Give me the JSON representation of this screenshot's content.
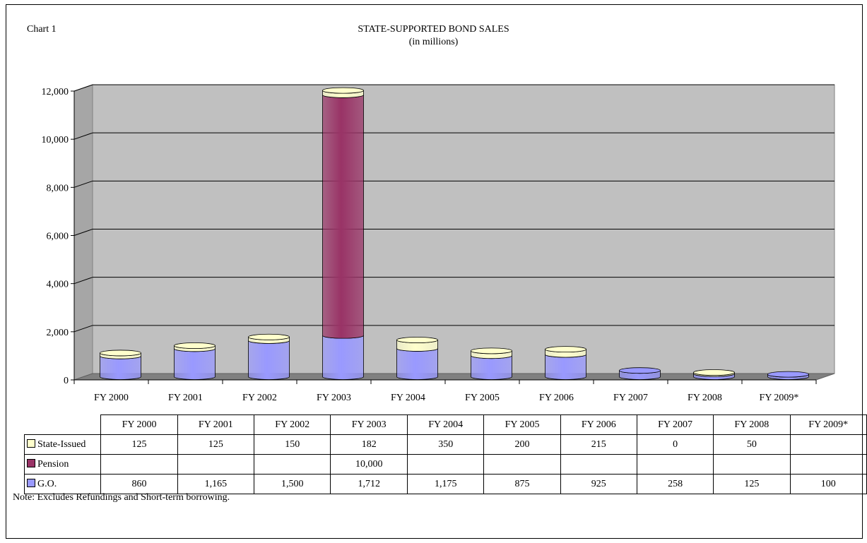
{
  "chart_label": "Chart 1",
  "note": "Note: Excludes Refundings and Short-term borrowing.",
  "chart_data": {
    "type": "bar",
    "stacked": true,
    "title": "STATE-SUPPORTED BOND SALES",
    "subtitle": "(in millions)",
    "categories": [
      "FY 2000",
      "FY 2001",
      "FY 2002",
      "FY 2003",
      "FY 2004",
      "FY 2005",
      "FY 2006",
      "FY 2007",
      "FY 2008",
      "FY 2009*"
    ],
    "series": [
      {
        "name": "G.O.",
        "color": "#9999ff",
        "values": [
          860,
          1165,
          1500,
          1712,
          1175,
          875,
          925,
          258,
          125,
          100
        ],
        "labels": [
          "860",
          "1,165",
          "1,500",
          "1,712",
          "1,175",
          "875",
          "925",
          "258",
          "125",
          "100"
        ]
      },
      {
        "name": "Pension",
        "color": "#993366",
        "values": [
          null,
          null,
          null,
          10000,
          null,
          null,
          null,
          null,
          null,
          null
        ],
        "labels": [
          "",
          "",
          "",
          "10,000",
          "",
          "",
          "",
          "",
          "",
          ""
        ]
      },
      {
        "name": "State-Issued",
        "color": "#ffffcc",
        "values": [
          125,
          125,
          150,
          182,
          350,
          200,
          215,
          0,
          50,
          null
        ],
        "labels": [
          "125",
          "125",
          "150",
          "182",
          "350",
          "200",
          "215",
          "0",
          "50",
          ""
        ]
      }
    ],
    "table_rows": [
      "State-Issued",
      "Pension",
      "G.O."
    ],
    "ylim": [
      0,
      12000
    ],
    "yticks": [
      0,
      2000,
      4000,
      6000,
      8000,
      10000,
      12000
    ],
    "ytick_labels": [
      "0",
      "2,000",
      "4,000",
      "6,000",
      "8,000",
      "10,000",
      "12,000"
    ],
    "grid": true,
    "legend": "data-table"
  }
}
